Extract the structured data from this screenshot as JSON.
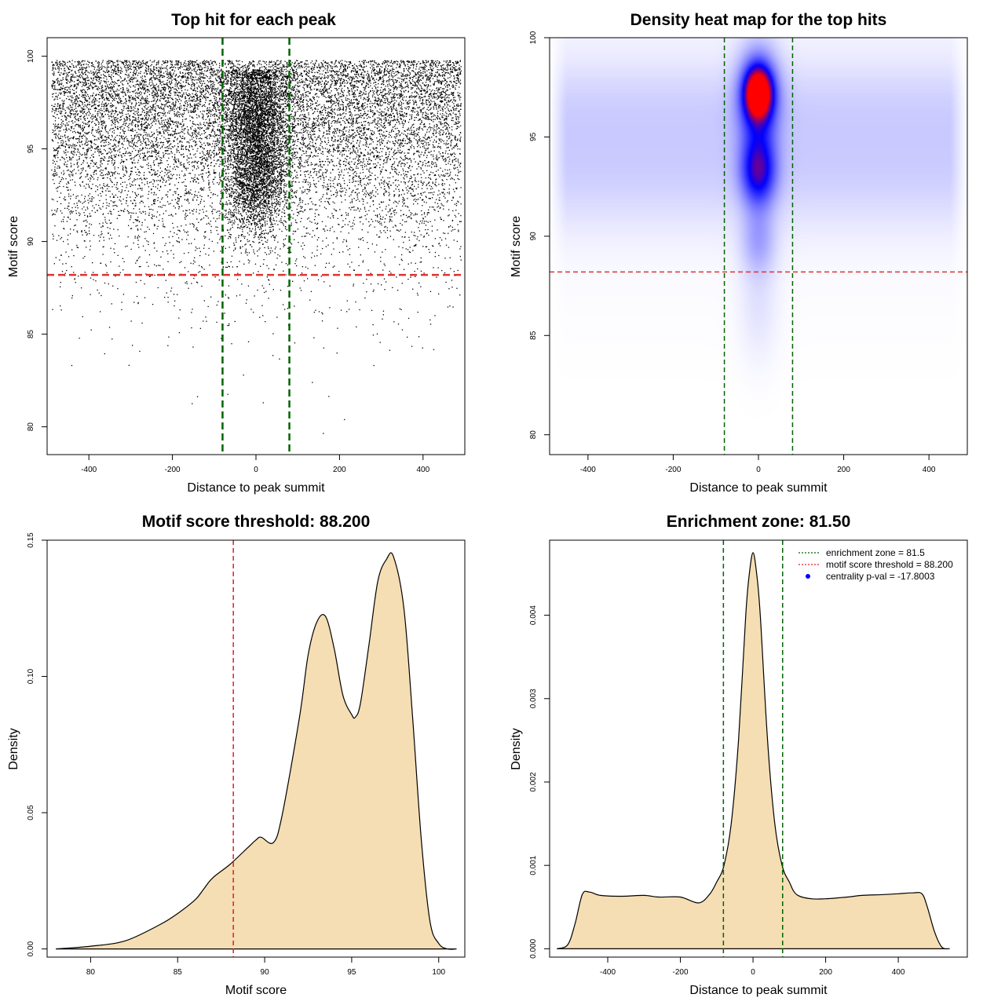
{
  "chart_data": [
    {
      "type": "scatter",
      "title": "Top hit for each peak",
      "xlabel": "Distance to peak summit",
      "ylabel": "Motif score",
      "xlim": [
        -500,
        500
      ],
      "ylim": [
        78.5,
        101
      ],
      "xticks": [
        "-400",
        "-200",
        "0",
        "200",
        "400"
      ],
      "yticks": [
        "80",
        "85",
        "90",
        "95",
        "100"
      ],
      "vlines": [
        -80,
        80
      ],
      "hline": 88.2,
      "point_model": {
        "x_range": [
          -490,
          490
        ],
        "y_range": [
          78.9,
          99.8
        ],
        "background_count": 13000,
        "central_count": 5000,
        "central_sd": 38,
        "central_score_modes": [
          93.5,
          97
        ]
      }
    },
    {
      "type": "heatmap",
      "title": "Density heat map for the top hits",
      "xlabel": "Distance to peak summit",
      "ylabel": "Motif score",
      "xlim": [
        -490,
        490
      ],
      "ylim": [
        79,
        100
      ],
      "xticks": [
        "-400",
        "-200",
        "0",
        "200",
        "400"
      ],
      "yticks": [
        "80",
        "85",
        "90",
        "95",
        "100"
      ],
      "vlines": [
        -80,
        80
      ],
      "hline": 88.2,
      "colors": [
        "#ffffff",
        "#0000ff",
        "#ff0000"
      ],
      "hotspots": [
        {
          "x": 0,
          "y": 97.2,
          "sx": 20,
          "sy": 0.8,
          "w": 1.0
        },
        {
          "x": 0,
          "y": 97.0,
          "sx": 32,
          "sy": 1.6,
          "w": 0.55
        },
        {
          "x": 0,
          "y": 93.3,
          "sx": 28,
          "sy": 1.2,
          "w": 0.6
        },
        {
          "x": 0,
          "y": 89.8,
          "sx": 28,
          "sy": 1.2,
          "w": 0.18
        },
        {
          "x": 0,
          "y": 86.5,
          "sx": 32,
          "sy": 2.0,
          "w": 0.06
        }
      ],
      "background": {
        "y": 93.5,
        "sy": 2.2,
        "w": 0.1,
        "tail_y": 96.8,
        "tail_sy": 1.5,
        "tail_w": 0.06
      }
    },
    {
      "type": "area",
      "title": "Motif score threshold: 88.200",
      "xlabel": "Motif score",
      "ylabel": "Density",
      "xlim": [
        77.5,
        101.5
      ],
      "ylim": [
        -0.003,
        0.15
      ],
      "xticks": [
        "80",
        "85",
        "90",
        "95",
        "100"
      ],
      "yticks": [
        "0.00",
        "0.05",
        "0.10",
        "0.15"
      ],
      "vline": 88.2,
      "x": [
        78,
        80,
        82,
        84,
        85,
        86,
        86.5,
        87,
        88,
        89,
        89.5,
        89.8,
        90.5,
        91,
        92,
        92.5,
        93,
        93.5,
        94,
        94.5,
        95,
        95.2,
        95.5,
        96,
        96.5,
        97,
        97.4,
        98,
        98.5,
        99,
        99.5,
        100,
        100.5,
        101
      ],
      "y": [
        0,
        0.001,
        0.003,
        0.009,
        0.013,
        0.018,
        0.022,
        0.026,
        0.031,
        0.037,
        0.04,
        0.041,
        0.039,
        0.049,
        0.085,
        0.108,
        0.12,
        0.122,
        0.11,
        0.093,
        0.086,
        0.085,
        0.09,
        0.112,
        0.135,
        0.143,
        0.144,
        0.125,
        0.085,
        0.04,
        0.01,
        0.002,
        0,
        0
      ],
      "fill": "#f5deb3"
    },
    {
      "type": "area",
      "title": "Enrichment zone: 81.50",
      "xlabel": "Distance to peak summit",
      "ylabel": "Density",
      "xlim": [
        -560,
        590
      ],
      "ylim": [
        -0.0001,
        0.0049
      ],
      "xticks": [
        "-400",
        "-200",
        "0",
        "200",
        "400"
      ],
      "yticks": [
        "0.000",
        "0.001",
        "0.002",
        "0.003",
        "0.004"
      ],
      "vlines": [
        -81.5,
        81.5
      ],
      "x": [
        -540,
        -510,
        -490,
        -470,
        -450,
        -420,
        -360,
        -300,
        -260,
        -200,
        -150,
        -120,
        -100,
        -80,
        -60,
        -40,
        -20,
        -10,
        0,
        10,
        20,
        40,
        60,
        80,
        100,
        120,
        160,
        200,
        260,
        300,
        360,
        400,
        440,
        465,
        480,
        500,
        520,
        540
      ],
      "y": [
        0,
        5e-05,
        0.0003,
        0.00065,
        0.00068,
        0.00064,
        0.00063,
        0.00064,
        0.00062,
        0.00062,
        0.00055,
        0.00065,
        0.0008,
        0.001,
        0.0015,
        0.0025,
        0.004,
        0.0045,
        0.00475,
        0.0045,
        0.004,
        0.0025,
        0.0015,
        0.001,
        0.0008,
        0.00065,
        0.0006,
        0.0006,
        0.00062,
        0.00064,
        0.00065,
        0.00066,
        0.00067,
        0.00066,
        0.0005,
        0.0002,
        2e-05,
        0
      ],
      "fill": "#f5deb3",
      "legend": {
        "position": "top-right",
        "items": [
          {
            "label": "enrichment zone = 81.5",
            "color": "#006400",
            "style": "dotted-line"
          },
          {
            "label": "motif score threshold = 88.200",
            "color": "#dd2222",
            "style": "dotted-line"
          },
          {
            "label": "centrality p-val = -17.8003",
            "color": "#0000ff",
            "style": "point"
          }
        ]
      }
    }
  ]
}
